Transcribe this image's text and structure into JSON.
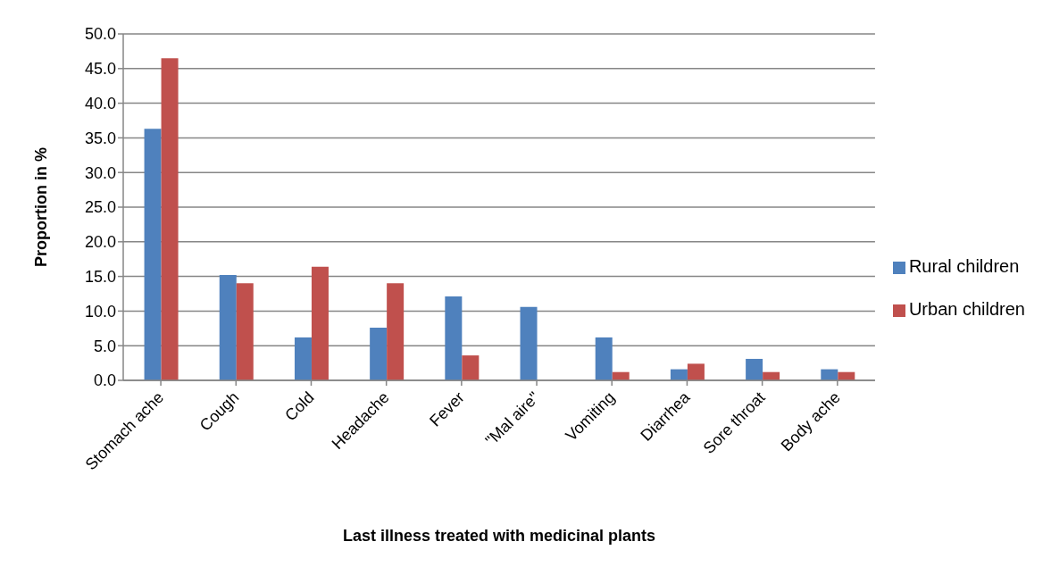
{
  "chart_data": {
    "type": "bar",
    "xlabel": "Last illness treated with medicinal plants",
    "ylabel": "Proportion in %",
    "categories": [
      "Stomach ache",
      "Cough",
      "Cold",
      "Headache",
      "Fever",
      "\"Mal aire\"",
      "Vomiting",
      "Diarrhea",
      "Sore throat",
      "Body ache"
    ],
    "series": [
      {
        "name": "Rural children",
        "color": "#4f81bd",
        "values": [
          36.3,
          15.2,
          6.2,
          7.6,
          12.1,
          10.6,
          6.2,
          1.6,
          3.1,
          1.6
        ]
      },
      {
        "name": "Urban children",
        "color": "#c0504d",
        "values": [
          46.5,
          14.0,
          16.4,
          14.0,
          3.6,
          0,
          1.2,
          2.4,
          1.2,
          1.2
        ]
      }
    ],
    "ylim": [
      0,
      50
    ],
    "yticks": [
      {
        "value": 0,
        "label": "0.0"
      },
      {
        "value": 5,
        "label": "5.0"
      },
      {
        "value": 10,
        "label": "10.0"
      },
      {
        "value": 15,
        "label": "15.0"
      },
      {
        "value": 20,
        "label": "20.0"
      },
      {
        "value": 25,
        "label": "25.0"
      },
      {
        "value": 30,
        "label": "30.0"
      },
      {
        "value": 35,
        "label": "35.0"
      },
      {
        "value": 40,
        "label": "40.0"
      },
      {
        "value": 45,
        "label": "45.0"
      },
      {
        "value": 50,
        "label": "50.0"
      }
    ],
    "grid": "y",
    "legend": "right"
  }
}
